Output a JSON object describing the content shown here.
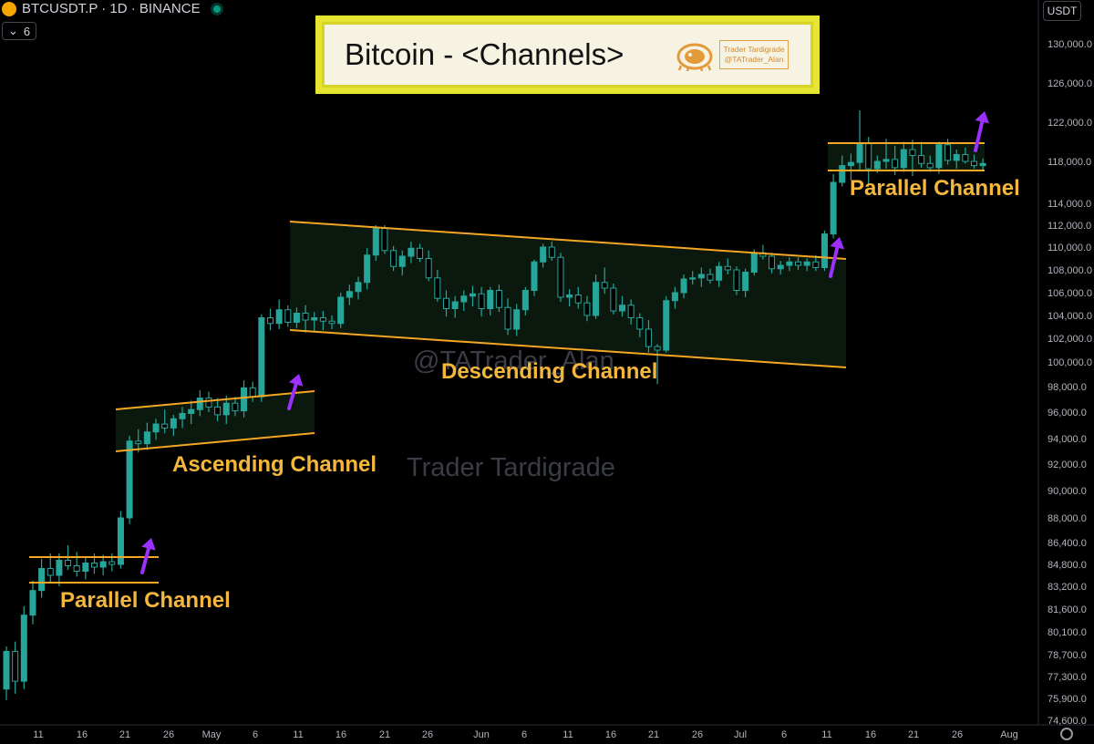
{
  "header": {
    "symbol": "BTCUSDT.P · 1D · BINANCE",
    "indicator_count": "6",
    "currency": "USDT"
  },
  "title_box": {
    "title": "Bitcoin - <Channels>",
    "badge_line1": "Trader Tardigrade",
    "badge_line2": "@TATrader_Alan"
  },
  "labels": {
    "parallel_left": "Parallel Channel",
    "ascending": "Ascending Channel",
    "descending": "Descending Channel",
    "parallel_right": "Parallel Channel"
  },
  "watermarks": {
    "handle": "@TATrader_Alan",
    "name": "Trader Tardigrade"
  },
  "colors": {
    "up": "#26a69a",
    "down": "#26a69a",
    "channel_line": "#f5a623",
    "arrow": "#9b30ff",
    "channel_fill": "rgba(30,70,40,0.35)"
  },
  "chart_data": {
    "type": "candlestick",
    "y_axis": {
      "ticks": [
        "130,000.0",
        "126,000.0",
        "122,000.0",
        "118,000.0",
        "114,000.0",
        "112,000.0",
        "110,000.0",
        "108,000.0",
        "106,000.0",
        "104,000.0",
        "102,000.0",
        "100,000.0",
        "98,000.0",
        "96,000.0",
        "94,000.0",
        "92,000.0",
        "90,000.0",
        "88,000.0",
        "86,400.0",
        "84,800.0",
        "83,200.0",
        "81,600.0",
        "80,100.0",
        "78,700.0",
        "77,300.0",
        "75,900.0",
        "74,600.0"
      ]
    },
    "x_axis": {
      "ticks": [
        "11",
        "16",
        "21",
        "26",
        "May",
        "6",
        "11",
        "16",
        "21",
        "26",
        "Jun",
        "6",
        "11",
        "16",
        "21",
        "26",
        "Jul",
        "6",
        "11",
        "16",
        "21",
        "26",
        "Aug"
      ]
    },
    "series": [
      {
        "ohlc": [
          [
            76500,
            79200,
            75800,
            78900
          ],
          [
            78900,
            79500,
            76200,
            77000
          ],
          [
            77000,
            81800,
            76500,
            81200
          ],
          [
            81200,
            83600,
            80600,
            82900
          ],
          [
            82900,
            85200,
            82400,
            84500
          ],
          [
            84500,
            85600,
            83500,
            84000
          ],
          [
            84000,
            85600,
            83200,
            85100
          ],
          [
            85100,
            86200,
            84400,
            84700
          ],
          [
            84700,
            85700,
            83900,
            84300
          ],
          [
            84300,
            85300,
            83700,
            84900
          ],
          [
            84900,
            85600,
            84100,
            84600
          ],
          [
            84600,
            85500,
            84000,
            85000
          ],
          [
            85000,
            85600,
            84300,
            84800
          ],
          [
            84800,
            88500,
            84500,
            88000
          ],
          [
            88000,
            94200,
            87600,
            93800
          ],
          [
            93800,
            94700,
            92900,
            93600
          ],
          [
            93600,
            95200,
            93100,
            94500
          ],
          [
            94500,
            95500,
            93900,
            95100
          ],
          [
            95100,
            96200,
            94400,
            94800
          ],
          [
            94800,
            95800,
            94200,
            95500
          ],
          [
            95500,
            96400,
            94800,
            95900
          ],
          [
            95900,
            96900,
            95100,
            96200
          ],
          [
            96200,
            97700,
            95700,
            97100
          ],
          [
            97100,
            97600,
            96000,
            96400
          ],
          [
            96400,
            97100,
            95300,
            95800
          ],
          [
            95800,
            97300,
            95100,
            96700
          ],
          [
            96700,
            97200,
            95700,
            96100
          ],
          [
            96100,
            98500,
            95600,
            97900
          ],
          [
            97900,
            98400,
            96800,
            97200
          ],
          [
            97200,
            104100,
            96800,
            103800
          ],
          [
            103800,
            104600,
            102700,
            103300
          ],
          [
            103300,
            105400,
            102800,
            104500
          ],
          [
            104500,
            104900,
            103000,
            103400
          ],
          [
            103400,
            104700,
            102900,
            104200
          ],
          [
            104200,
            104900,
            102500,
            103600
          ],
          [
            103600,
            104300,
            102600,
            103800
          ],
          [
            103800,
            104400,
            102700,
            103500
          ],
          [
            103500,
            104000,
            102800,
            103300
          ],
          [
            103300,
            106000,
            102900,
            105600
          ],
          [
            105600,
            106700,
            104900,
            106100
          ],
          [
            106100,
            107400,
            105400,
            106900
          ],
          [
            106900,
            109900,
            106300,
            109300
          ],
          [
            109300,
            112000,
            108800,
            111700
          ],
          [
            111700,
            112000,
            109400,
            109700
          ],
          [
            109700,
            110100,
            107900,
            108300
          ],
          [
            108300,
            109700,
            107500,
            109200
          ],
          [
            109200,
            110500,
            108600,
            109900
          ],
          [
            109900,
            110300,
            108700,
            109000
          ],
          [
            109000,
            109700,
            107000,
            107300
          ],
          [
            107300,
            108000,
            105200,
            105500
          ],
          [
            105500,
            106200,
            103900,
            104600
          ],
          [
            104600,
            105700,
            103800,
            105200
          ],
          [
            105200,
            106200,
            104400,
            105700
          ],
          [
            105700,
            106600,
            104800,
            105900
          ],
          [
            105900,
            106500,
            103900,
            104600
          ],
          [
            104600,
            106500,
            104000,
            106200
          ],
          [
            106200,
            106700,
            104300,
            104700
          ],
          [
            104700,
            105500,
            102300,
            102800
          ],
          [
            102800,
            105000,
            102200,
            104500
          ],
          [
            104500,
            106500,
            104000,
            106200
          ],
          [
            106200,
            108900,
            105700,
            108700
          ],
          [
            108700,
            110300,
            108200,
            110000
          ],
          [
            110000,
            110500,
            108800,
            109100
          ],
          [
            109100,
            109500,
            105200,
            105600
          ],
          [
            105600,
            106300,
            104800,
            105800
          ],
          [
            105800,
            106500,
            104600,
            105100
          ],
          [
            105100,
            105700,
            103500,
            104000
          ],
          [
            104000,
            107600,
            103700,
            106900
          ],
          [
            106900,
            108200,
            105900,
            106400
          ],
          [
            106400,
            106800,
            104100,
            104400
          ],
          [
            104400,
            105700,
            103900,
            104900
          ],
          [
            104900,
            105400,
            103200,
            103800
          ],
          [
            103800,
            104200,
            102100,
            102800
          ],
          [
            102800,
            103600,
            100800,
            101300
          ],
          [
            101300,
            101500,
            98200,
            101000
          ],
          [
            101000,
            105700,
            100800,
            105300
          ],
          [
            105300,
            106500,
            104600,
            106000
          ],
          [
            106000,
            107600,
            105500,
            107200
          ],
          [
            107200,
            107900,
            106700,
            107300
          ],
          [
            107300,
            108200,
            106500,
            107600
          ],
          [
            107600,
            108100,
            106800,
            107100
          ],
          [
            107100,
            108700,
            106500,
            108300
          ],
          [
            108300,
            109000,
            107600,
            108000
          ],
          [
            108000,
            108300,
            105800,
            106200
          ],
          [
            106200,
            108100,
            105600,
            107800
          ],
          [
            107800,
            109800,
            107500,
            109500
          ],
          [
            109500,
            110200,
            108900,
            109200
          ],
          [
            109200,
            109500,
            107700,
            108100
          ],
          [
            108100,
            108800,
            107600,
            108400
          ],
          [
            108400,
            109100,
            107900,
            108700
          ],
          [
            108700,
            109100,
            108000,
            108400
          ],
          [
            108400,
            109000,
            107900,
            108700
          ],
          [
            108700,
            109300,
            107900,
            108200
          ],
          [
            108200,
            111500,
            107900,
            111200
          ],
          [
            111200,
            116800,
            110800,
            116000
          ],
          [
            116000,
            118600,
            115600,
            117600
          ],
          [
            117600,
            118800,
            116200,
            117900
          ],
          [
            117900,
            123200,
            117200,
            119800
          ],
          [
            119800,
            120500,
            115800,
            117300
          ],
          [
            117300,
            118600,
            116900,
            118000
          ],
          [
            118000,
            120300,
            117300,
            118200
          ],
          [
            118200,
            119600,
            116700,
            117400
          ],
          [
            117400,
            120000,
            117000,
            119200
          ],
          [
            119200,
            120200,
            116600,
            118600
          ],
          [
            118600,
            120000,
            117400,
            117800
          ],
          [
            117800,
            118600,
            117000,
            117400
          ],
          [
            117400,
            120000,
            116800,
            119700
          ],
          [
            119700,
            120300,
            117700,
            118100
          ],
          [
            118100,
            119200,
            117300,
            118700
          ],
          [
            118700,
            119400,
            117800,
            118000
          ],
          [
            118000,
            118700,
            117300,
            117600
          ],
          [
            117600,
            118300,
            117100,
            117800
          ]
        ]
      }
    ]
  }
}
